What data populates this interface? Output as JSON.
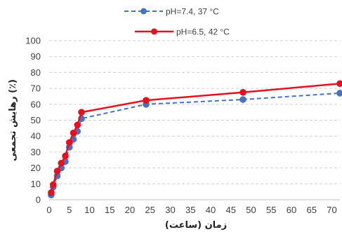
{
  "chart_data": {
    "type": "line",
    "xlabel": "زمان (ساعت)",
    "ylabel": "رهایش تجمعی (٪)",
    "xlim": [
      0,
      72
    ],
    "ylim": [
      0,
      100
    ],
    "x_ticks": [
      0,
      5,
      10,
      15,
      20,
      25,
      30,
      35,
      40,
      45,
      50,
      55,
      60,
      65,
      70
    ],
    "y_ticks": [
      0,
      10,
      20,
      30,
      40,
      50,
      60,
      70,
      80,
      90,
      100
    ],
    "grid": "horizontal-dashed",
    "legend_position": "top-center",
    "series": [
      {
        "name": "pH=7.4, 37 °C",
        "color": "#4472C4",
        "line_style": "dashed",
        "marker": "circle",
        "x": [
          0.5,
          1,
          2,
          3,
          4,
          5,
          6,
          7,
          8,
          24,
          48,
          72
        ],
        "y": [
          3,
          8,
          15,
          20,
          24,
          33,
          38,
          43,
          51,
          60,
          63,
          67
        ]
      },
      {
        "name": "pH=6.5, 42 °C",
        "color": "#E8101E",
        "line_style": "solid",
        "marker": "circle",
        "x": [
          0.5,
          1,
          2,
          3,
          4,
          5,
          6,
          7,
          8,
          24,
          48,
          72
        ],
        "y": [
          4.5,
          9.5,
          18,
          23,
          27.5,
          36,
          42,
          47,
          55,
          62.5,
          67.5,
          73
        ]
      }
    ]
  }
}
